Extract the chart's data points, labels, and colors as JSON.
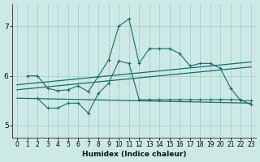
{
  "xlabel": "Humidex (Indice chaleur)",
  "xlim": [
    -0.5,
    23.5
  ],
  "ylim": [
    4.75,
    7.45
  ],
  "yticks": [
    5,
    6,
    7
  ],
  "xticks": [
    0,
    1,
    2,
    3,
    4,
    5,
    6,
    7,
    8,
    9,
    10,
    11,
    12,
    13,
    14,
    15,
    16,
    17,
    18,
    19,
    20,
    21,
    22,
    23
  ],
  "bg_color": "#cce9e5",
  "grid_color": "#aad4cf",
  "line_color": "#1a6b6b",
  "line1_x": [
    1,
    2,
    3,
    4,
    5,
    6,
    7,
    8,
    9,
    10,
    11,
    12,
    13,
    14,
    15,
    16,
    17,
    18,
    19,
    20,
    21,
    22,
    23
  ],
  "line1_y": [
    6.0,
    6.0,
    5.75,
    5.7,
    5.72,
    5.8,
    5.68,
    6.0,
    6.32,
    7.0,
    7.15,
    6.25,
    6.55,
    6.55,
    6.55,
    6.45,
    6.2,
    6.25,
    6.25,
    6.15,
    5.75,
    5.5,
    5.5
  ],
  "line2_x": [
    2,
    3,
    4,
    5,
    6,
    7,
    8,
    9,
    10,
    11,
    12,
    13,
    14,
    15,
    16,
    17,
    18,
    19,
    20,
    21,
    22,
    23
  ],
  "line2_y": [
    5.55,
    5.35,
    5.35,
    5.45,
    5.45,
    5.25,
    5.65,
    5.85,
    6.3,
    6.25,
    5.52,
    5.52,
    5.52,
    5.52,
    5.52,
    5.52,
    5.52,
    5.52,
    5.52,
    5.52,
    5.52,
    5.42
  ],
  "line3_x": [
    0,
    23
  ],
  "line3_y": [
    5.82,
    6.28
  ],
  "line4_x": [
    0,
    23
  ],
  "line4_y": [
    5.72,
    6.18
  ],
  "line5_x": [
    0,
    23
  ],
  "line5_y": [
    5.55,
    5.45
  ]
}
